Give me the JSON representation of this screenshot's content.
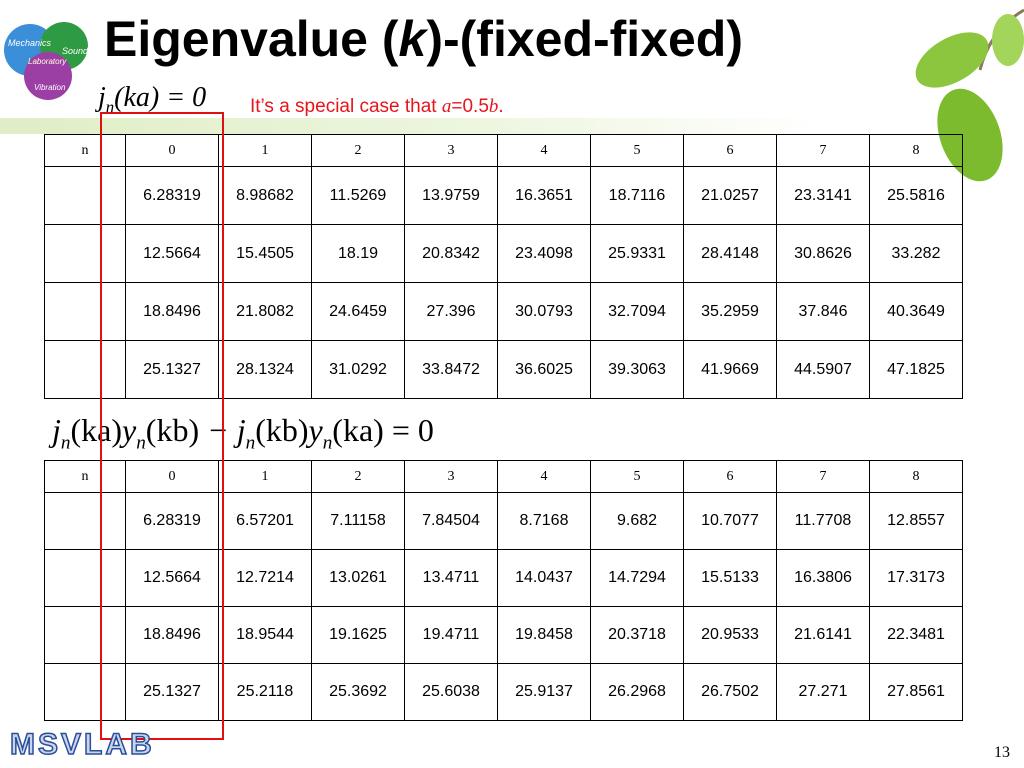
{
  "logo": {
    "words": [
      "Mechanics",
      "Sound",
      "Laboratory",
      "Vibration"
    ]
  },
  "header": {
    "title": {
      "before": "Eigenvalue (",
      "italic": "k",
      "after": ")-(fixed-fixed)"
    }
  },
  "equation1": {
    "base": "j",
    "sub": "n",
    "rest": "(ka) = 0"
  },
  "note": {
    "before": "It’s a special case that ",
    "a": "a",
    "mid": "=0.5",
    "b": "b",
    "end": "."
  },
  "table1": {
    "header": [
      "n",
      "0",
      "1",
      "2",
      "3",
      "4",
      "5",
      "6",
      "7",
      "8"
    ],
    "rows": [
      [
        "6.28319",
        "8.98682",
        "11.5269",
        "13.9759",
        "16.3651",
        "18.7116",
        "21.0257",
        "23.3141",
        "25.5816"
      ],
      [
        "12.5664",
        "15.4505",
        "18.19",
        "20.8342",
        "23.4098",
        "25.9331",
        "28.4148",
        "30.8626",
        "33.282"
      ],
      [
        "18.8496",
        "21.8082",
        "24.6459",
        "27.396",
        "30.0793",
        "32.7094",
        "35.2959",
        "37.846",
        "40.3649"
      ],
      [
        "25.1327",
        "28.1324",
        "31.0292",
        "33.8472",
        "36.6025",
        "39.3063",
        "41.9669",
        "44.5907",
        "47.1825"
      ]
    ]
  },
  "equation2": {
    "terms": [
      {
        "base": "j",
        "sub": "n",
        "arg": "(ka)"
      },
      {
        "base": "y",
        "sub": "n",
        "arg": "(kb)"
      },
      {
        "base": " − j",
        "sub": "n",
        "arg": "(kb)"
      },
      {
        "base": "y",
        "sub": "n",
        "arg": "(ka)"
      }
    ],
    "tail": " = 0"
  },
  "table2": {
    "header": [
      "n",
      "0",
      "1",
      "2",
      "3",
      "4",
      "5",
      "6",
      "7",
      "8"
    ],
    "rows": [
      [
        "6.28319",
        "6.57201",
        "7.11158",
        "7.84504",
        "8.7168",
        "9.682",
        "10.7077",
        "11.7708",
        "12.8557"
      ],
      [
        "12.5664",
        "12.7214",
        "13.0261",
        "13.4711",
        "14.0437",
        "14.7294",
        "15.5133",
        "16.3806",
        "17.3173"
      ],
      [
        "18.8496",
        "18.9544",
        "19.1625",
        "19.4711",
        "19.8458",
        "20.3718",
        "20.9533",
        "21.6141",
        "22.3481"
      ],
      [
        "25.1327",
        "25.2118",
        "25.3692",
        "25.6038",
        "25.9137",
        "26.2968",
        "26.7502",
        "27.271",
        "27.8561"
      ]
    ]
  },
  "footer": {
    "brand": "MSVLAB",
    "page": "13"
  }
}
